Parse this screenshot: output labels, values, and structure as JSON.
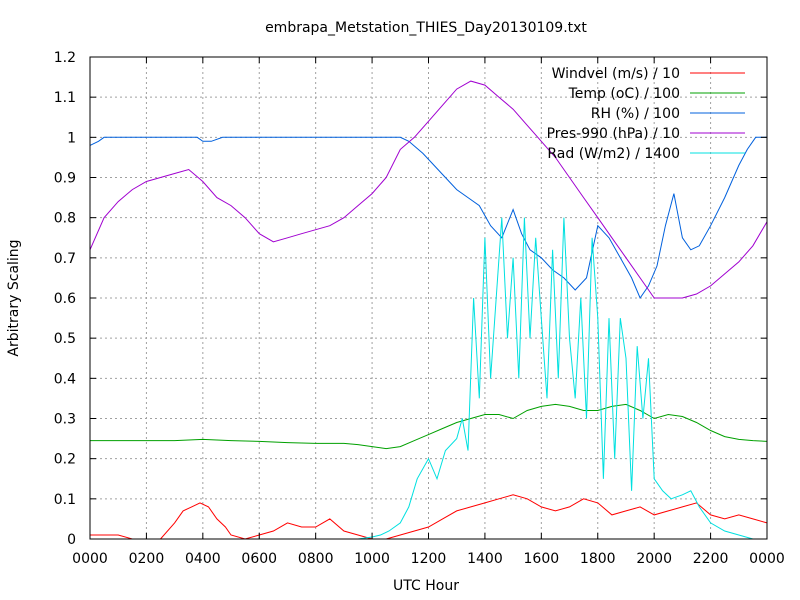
{
  "chart_data": {
    "type": "line",
    "title": "embrapa_Metstation_THIES_Day20130109.txt",
    "xlabel": "UTC Hour",
    "ylabel": "Arbitrary Scaling",
    "xlim": [
      0,
      24
    ],
    "ylim": [
      0,
      1.2
    ],
    "grid": true,
    "legend_position": "top-right",
    "x_tick_labels": [
      "0000",
      "0200",
      "0400",
      "0600",
      "0800",
      "1000",
      "1200",
      "1400",
      "1600",
      "1800",
      "2000",
      "2200",
      "0000"
    ],
    "y_tick_labels": [
      "0",
      "0.1",
      "0.2",
      "0.3",
      "0.4",
      "0.5",
      "0.6",
      "0.7",
      "0.8",
      "0.9",
      "1",
      "1.1",
      "1.2"
    ],
    "series": [
      {
        "name": "Windvel (m/s) / 10",
        "color": "#ff0000",
        "x": [
          0,
          0.5,
          1,
          1.5,
          2,
          2.5,
          3,
          3.3,
          3.6,
          3.9,
          4.2,
          4.5,
          4.8,
          5,
          5.5,
          6,
          6.5,
          7,
          7.5,
          8,
          8.5,
          9,
          9.5,
          10,
          10.5,
          11,
          11.5,
          12,
          12.5,
          13,
          13.5,
          14,
          14.5,
          15,
          15.5,
          16,
          16.5,
          17,
          17.5,
          18,
          18.5,
          19,
          19.5,
          20,
          20.5,
          21,
          21.5,
          22,
          22.5,
          23,
          23.5,
          24
        ],
        "y": [
          0.01,
          0.01,
          0.01,
          0,
          0,
          0,
          0.04,
          0.07,
          0.08,
          0.09,
          0.08,
          0.05,
          0.03,
          0.01,
          0,
          0.01,
          0.02,
          0.04,
          0.03,
          0.03,
          0.05,
          0.02,
          0.01,
          0,
          0,
          0.01,
          0.02,
          0.03,
          0.05,
          0.07,
          0.08,
          0.09,
          0.1,
          0.11,
          0.1,
          0.08,
          0.07,
          0.08,
          0.1,
          0.09,
          0.06,
          0.07,
          0.08,
          0.06,
          0.07,
          0.08,
          0.09,
          0.06,
          0.05,
          0.06,
          0.05,
          0.04
        ]
      },
      {
        "name": "Temp (oC) / 100",
        "color": "#00a000",
        "x": [
          0,
          1,
          2,
          3,
          4,
          5,
          6,
          7,
          8,
          9,
          9.5,
          10,
          10.5,
          11,
          11.5,
          12,
          12.5,
          13,
          13.5,
          14,
          14.5,
          15,
          15.5,
          16,
          16.5,
          17,
          17.5,
          18,
          18.5,
          19,
          19.5,
          20,
          20.5,
          21,
          21.5,
          22,
          22.5,
          23,
          23.5,
          24
        ],
        "y": [
          0.245,
          0.245,
          0.245,
          0.245,
          0.248,
          0.245,
          0.243,
          0.24,
          0.238,
          0.238,
          0.235,
          0.23,
          0.225,
          0.23,
          0.245,
          0.26,
          0.275,
          0.29,
          0.3,
          0.31,
          0.31,
          0.3,
          0.32,
          0.33,
          0.335,
          0.33,
          0.32,
          0.32,
          0.33,
          0.335,
          0.32,
          0.3,
          0.31,
          0.305,
          0.29,
          0.27,
          0.255,
          0.248,
          0.245,
          0.243
        ]
      },
      {
        "name": "RH (%) / 100",
        "color": "#0060dd",
        "x": [
          0,
          0.3,
          0.5,
          1,
          2,
          3,
          3.8,
          4,
          4.3,
          4.7,
          5,
          6,
          7,
          8,
          9,
          10,
          10.5,
          11,
          11.3,
          11.8,
          12.2,
          12.6,
          13,
          13.4,
          13.8,
          14.2,
          14.6,
          15,
          15.3,
          15.6,
          16,
          16.4,
          16.8,
          17.2,
          17.6,
          18,
          18.4,
          18.8,
          19.2,
          19.5,
          19.8,
          20.1,
          20.4,
          20.7,
          21,
          21.3,
          21.6,
          22,
          22.5,
          23,
          23.3,
          23.6,
          24
        ],
        "y": [
          0.98,
          0.99,
          1,
          1,
          1,
          1,
          1,
          0.99,
          0.99,
          1,
          1,
          1,
          1,
          1,
          1,
          1,
          1,
          1,
          0.99,
          0.96,
          0.93,
          0.9,
          0.87,
          0.85,
          0.83,
          0.78,
          0.75,
          0.82,
          0.76,
          0.72,
          0.7,
          0.67,
          0.65,
          0.62,
          0.65,
          0.78,
          0.75,
          0.7,
          0.65,
          0.6,
          0.63,
          0.68,
          0.78,
          0.86,
          0.75,
          0.72,
          0.73,
          0.78,
          0.85,
          0.93,
          0.97,
          1,
          1
        ]
      },
      {
        "name": "Pres-990 (hPa) / 10",
        "color": "#a000d0",
        "x": [
          0,
          0.5,
          1,
          1.5,
          2,
          2.5,
          3,
          3.5,
          4,
          4.5,
          5,
          5.5,
          6,
          6.5,
          7,
          7.5,
          8,
          8.5,
          9,
          9.5,
          10,
          10.5,
          11,
          11.5,
          12,
          12.5,
          13,
          13.5,
          14,
          14.5,
          15,
          15.5,
          16,
          16.5,
          17,
          17.5,
          18,
          18.5,
          19,
          19.5,
          20,
          20.5,
          21,
          21.5,
          22,
          22.5,
          23,
          23.5,
          24
        ],
        "y": [
          0.72,
          0.8,
          0.84,
          0.87,
          0.89,
          0.9,
          0.91,
          0.92,
          0.89,
          0.85,
          0.83,
          0.8,
          0.76,
          0.74,
          0.75,
          0.76,
          0.77,
          0.78,
          0.8,
          0.83,
          0.86,
          0.9,
          0.97,
          1.0,
          1.04,
          1.08,
          1.12,
          1.14,
          1.13,
          1.1,
          1.07,
          1.03,
          0.99,
          0.95,
          0.9,
          0.85,
          0.8,
          0.75,
          0.7,
          0.65,
          0.6,
          0.6,
          0.6,
          0.61,
          0.63,
          0.66,
          0.69,
          0.73,
          0.79
        ]
      },
      {
        "name": "Rad (W/m2) / 1400",
        "color": "#00e0e0",
        "x": [
          0,
          1,
          2,
          3,
          4,
          5,
          6,
          7,
          8,
          9,
          9.5,
          10,
          10.3,
          10.6,
          11,
          11.3,
          11.6,
          12,
          12.3,
          12.6,
          13,
          13.2,
          13.4,
          13.6,
          13.8,
          14,
          14.2,
          14.4,
          14.6,
          14.8,
          15,
          15.2,
          15.4,
          15.6,
          15.8,
          16,
          16.2,
          16.4,
          16.6,
          16.8,
          17,
          17.2,
          17.4,
          17.6,
          17.8,
          18,
          18.2,
          18.4,
          18.6,
          18.8,
          19,
          19.2,
          19.4,
          19.6,
          19.8,
          20,
          20.3,
          20.6,
          21,
          21.3,
          21.6,
          22,
          22.5,
          23,
          23.5,
          24
        ],
        "y": [
          0,
          0,
          0,
          0,
          0,
          0,
          0,
          0,
          0,
          0,
          0,
          0.005,
          0.01,
          0.02,
          0.04,
          0.08,
          0.15,
          0.2,
          0.15,
          0.22,
          0.25,
          0.3,
          0.22,
          0.6,
          0.35,
          0.75,
          0.4,
          0.6,
          0.8,
          0.5,
          0.7,
          0.4,
          0.8,
          0.5,
          0.75,
          0.55,
          0.35,
          0.72,
          0.4,
          0.8,
          0.5,
          0.35,
          0.6,
          0.3,
          0.75,
          0.55,
          0.15,
          0.55,
          0.2,
          0.55,
          0.45,
          0.12,
          0.48,
          0.3,
          0.45,
          0.15,
          0.12,
          0.1,
          0.11,
          0.12,
          0.08,
          0.04,
          0.02,
          0.01,
          0,
          0
        ]
      }
    ]
  }
}
